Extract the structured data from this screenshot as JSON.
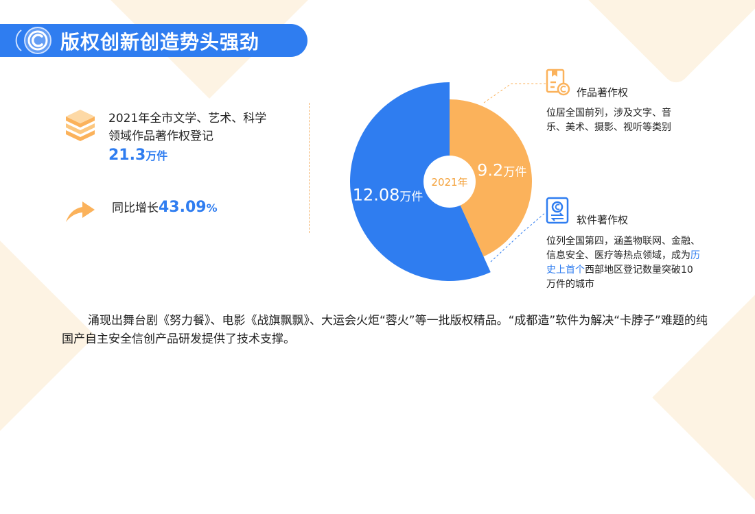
{
  "header": {
    "title": "版权创新创造势头强劲",
    "logo_icon": "copyright-icon"
  },
  "left": {
    "registration_text": "2021年全市文学、艺术、科学领域作品著作权登记",
    "registration_value": "21.3",
    "registration_unit": "万件",
    "growth_label": "同比增长",
    "growth_value": "43.09",
    "growth_unit": "%",
    "icons": [
      "books-icon",
      "arrow-up-icon"
    ]
  },
  "chart_data": {
    "type": "pie",
    "center_label": "2021年",
    "slices": [
      {
        "label": "作品著作权",
        "value": 9.2,
        "display": "9.2",
        "unit": "万件",
        "color": "#fbb25b"
      },
      {
        "label": "软件著作权",
        "value": 12.08,
        "display": "12.08",
        "unit": "万件",
        "color": "#2f7df0"
      }
    ]
  },
  "panels": {
    "works": {
      "title": "作品著作权",
      "desc": "位居全国前列，涉及文字、音乐、美术、摄影、视听等类别",
      "icon": "document-copyright-icon"
    },
    "software": {
      "title": "软件著作权",
      "desc_before": "位列全国第四，涵盖物联网、金融、信息安全、医疗等热点领域，成为",
      "desc_highlight": "历史上首个",
      "desc_after": "西部地区登记数量突破10万件的城市",
      "icon": "software-copyright-icon"
    }
  },
  "footer": {
    "paragraph": "涌现出舞台剧《努力餐》、电影《战旗飘飘》、大运会火炬“蓉火”等一批版权精品。“成都造”软件为解决“卡脖子”难题的纯国产自主安全信创产品研发提供了技术支撑。"
  },
  "colors": {
    "accent_blue": "#2f7df0",
    "accent_orange": "#fbb25b",
    "deco": "#fdf3e3"
  }
}
